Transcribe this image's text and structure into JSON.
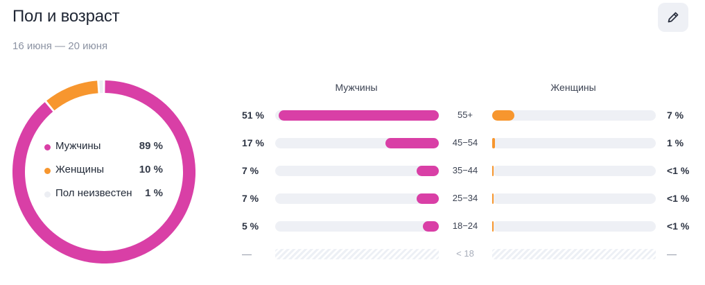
{
  "header": {
    "title": "Пол и возраст",
    "subtitle": "16 июня — 20 июня",
    "edit_icon": "pencil-icon"
  },
  "colors": {
    "male": "#d93fa6",
    "female": "#f7962e",
    "unknown": "#eceef3",
    "track": "#eef0f5"
  },
  "legend": [
    {
      "label": "Мужчины",
      "value": "89 %"
    },
    {
      "label": "Женщины",
      "value": "10 %"
    },
    {
      "label": "Пол неизвестен",
      "value": "1 %"
    }
  ],
  "columns": {
    "male": "Мужчины",
    "female": "Женщины"
  },
  "rows": [
    {
      "age": "55+",
      "male_label": "51 %",
      "female_label": "7 %"
    },
    {
      "age": "45−54",
      "male_label": "17 %",
      "female_label": "1 %"
    },
    {
      "age": "35−44",
      "male_label": "7 %",
      "female_label": "<1 %"
    },
    {
      "age": "25−34",
      "male_label": "7 %",
      "female_label": "<1 %"
    },
    {
      "age": "18−24",
      "male_label": "5 %",
      "female_label": "<1 %"
    },
    {
      "age": "< 18",
      "male_label": "—",
      "female_label": "—"
    }
  ],
  "chart_data": [
    {
      "type": "pie",
      "categories": [
        "Мужчины",
        "Женщины",
        "Пол неизвестен"
      ],
      "values": [
        89,
        10,
        1
      ],
      "donut": true
    },
    {
      "type": "bar",
      "orientation": "horizontal",
      "categories": [
        "55+",
        "45−54",
        "35−44",
        "25−34",
        "18−24",
        "< 18"
      ],
      "series": [
        {
          "name": "Мужчины",
          "values": [
            51,
            17,
            7,
            7,
            5,
            null
          ]
        },
        {
          "name": "Женщины",
          "values": [
            7,
            1,
            0.5,
            0.5,
            0.5,
            null
          ]
        }
      ],
      "xlim": [
        0,
        100
      ]
    }
  ]
}
